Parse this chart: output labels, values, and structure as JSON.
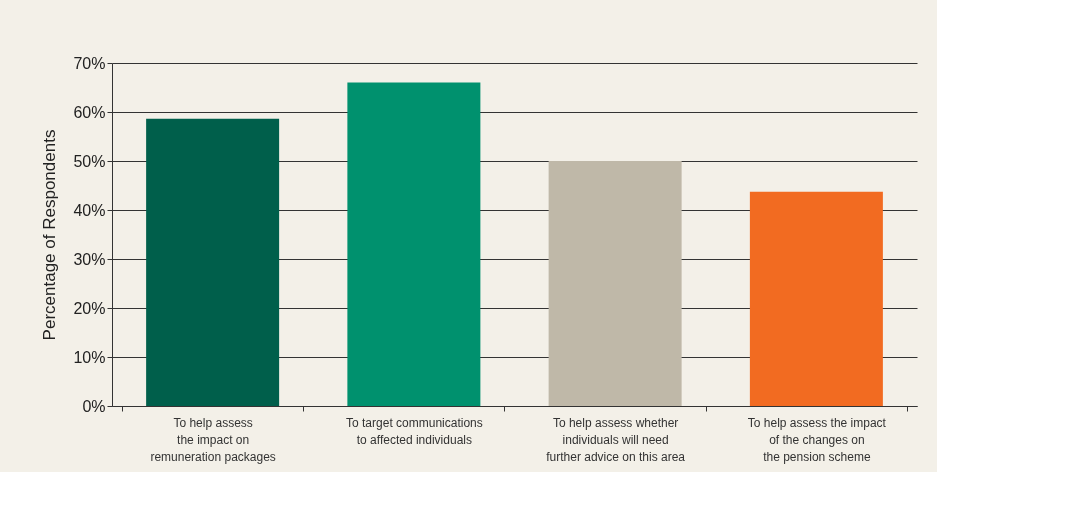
{
  "chart_data": {
    "type": "bar",
    "ylabel": "Percentage of Respondents",
    "categories": [
      "To help assess\nthe impact on\nremuneration packages",
      "To target communications\nto affected individuals",
      "To help assess whether\nindividuals will need\nfurther advice on this area",
      "To help assess the impact\nof the changes on\nthe pension scheme"
    ],
    "values": [
      58.6,
      66,
      50,
      43.7
    ],
    "colors": [
      "#005f4b",
      "#00916e",
      "#bfb8a8",
      "#f26b21"
    ],
    "ylim": [
      0,
      70
    ],
    "yticks": [
      {
        "value": 0,
        "label": "0%"
      },
      {
        "value": 10,
        "label": "10%"
      },
      {
        "value": 20,
        "label": "20%"
      },
      {
        "value": 30,
        "label": "30%"
      },
      {
        "value": 40,
        "label": "40%"
      },
      {
        "value": 50,
        "label": "50%"
      },
      {
        "value": 60,
        "label": "60%"
      },
      {
        "value": 70,
        "label": "70%"
      }
    ],
    "grid": "y",
    "legend": false
  }
}
